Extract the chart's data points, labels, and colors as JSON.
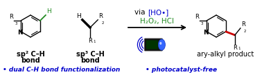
{
  "bg_color": "#ffffff",
  "black": "#000000",
  "green_color": "#228B22",
  "blue_color": "#0000cc",
  "red_color": "#cc0000",
  "dark_body": "#1a1a1a",
  "via_text": "via",
  "ho_text": "[HO•]",
  "reagents_text": "H₂O₂, HCl",
  "bullet1": "• dual C-H bond functionalization",
  "bullet2": "• photocatalyst-free",
  "sp2_line1": "sp² C–H",
  "sp2_line2": "bond",
  "sp3_line1": "sp³ C–H",
  "sp3_line2": "bond",
  "product_text": "ary-alkyl product",
  "figsize": [
    3.78,
    1.12
  ],
  "dpi": 100
}
